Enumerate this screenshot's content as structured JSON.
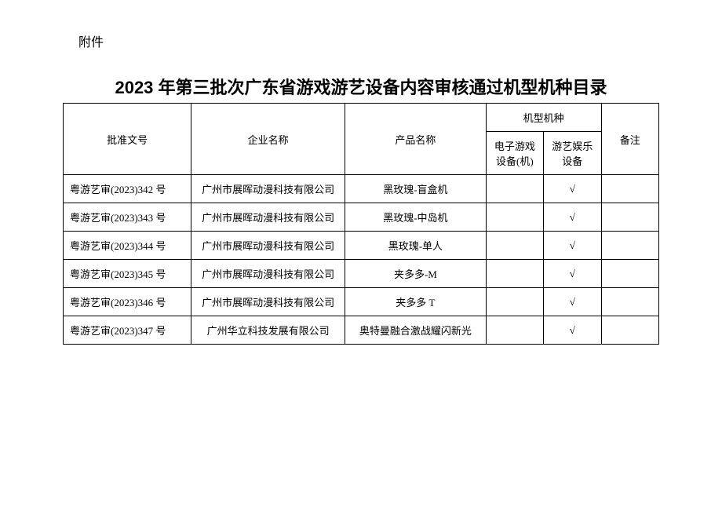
{
  "attachment_label": "附件",
  "title": "2023 年第三批次广东省游戏游艺设备内容审核通过机型机种目录",
  "headers": {
    "approval_no": "批准文号",
    "company": "企业名称",
    "product": "产品名称",
    "machine_type": "机型机种",
    "electronic": "电子游戏设备(机)",
    "amusement": "游艺娱乐设备",
    "remark": "备注"
  },
  "rows": [
    {
      "approval": "粤游艺审(2023)342 号",
      "company": "广州市展晖动漫科技有限公司",
      "product": "黑玫瑰-盲盒机",
      "electronic": "",
      "amusement": "√",
      "remark": ""
    },
    {
      "approval": "粤游艺审(2023)343 号",
      "company": "广州市展晖动漫科技有限公司",
      "product": "黑玫瑰-中岛机",
      "electronic": "",
      "amusement": "√",
      "remark": ""
    },
    {
      "approval": "粤游艺审(2023)344 号",
      "company": "广州市展晖动漫科技有限公司",
      "product": "黑玫瑰-单人",
      "electronic": "",
      "amusement": "√",
      "remark": ""
    },
    {
      "approval": "粤游艺审(2023)345 号",
      "company": "广州市展晖动漫科技有限公司",
      "product": "夹多多-M",
      "electronic": "",
      "amusement": "√",
      "remark": ""
    },
    {
      "approval": "粤游艺审(2023)346 号",
      "company": "广州市展晖动漫科技有限公司",
      "product": "夹多多 T",
      "electronic": "",
      "amusement": "√",
      "remark": ""
    },
    {
      "approval": "粤游艺审(2023)347 号",
      "company": "广州华立科技发展有限公司",
      "product": "奥特曼融合激战耀闪新光",
      "electronic": "",
      "amusement": "√",
      "remark": ""
    }
  ]
}
